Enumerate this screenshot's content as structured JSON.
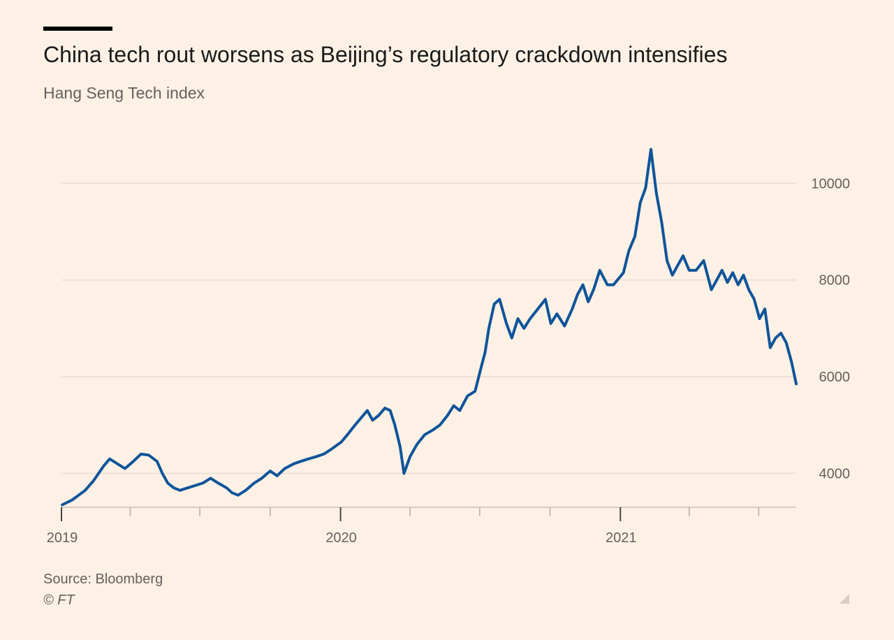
{
  "header": {
    "title": "China tech rout worsens as Beijing’s regulatory crackdown intensifies",
    "subtitle": "Hang Seng Tech index"
  },
  "footer": {
    "source": "Source: Bloomberg",
    "copyright": "© FT"
  },
  "colors": {
    "background": "#fdf1e6",
    "series": "#0f5499",
    "grid": "#e8ddd2",
    "axis_text": "#66605c"
  },
  "chart_data": {
    "type": "line",
    "xlim": [
      "2019-01-01",
      "2021-08-19"
    ],
    "ylim": [
      3300,
      10900
    ],
    "grid": true,
    "y_ticks": [
      {
        "value": 4000,
        "label": "4000"
      },
      {
        "value": 6000,
        "label": "6000"
      },
      {
        "value": 8000,
        "label": "8000"
      },
      {
        "value": 10000,
        "label": "10000"
      }
    ],
    "x_labels": [
      {
        "date": "2019-01-01",
        "label": "2019"
      },
      {
        "date": "2020-01-01",
        "label": "2020"
      },
      {
        "date": "2021-01-01",
        "label": "2021"
      }
    ],
    "x_minor_ticks": [
      "2019-04-01",
      "2019-07-01",
      "2019-10-01",
      "2020-04-01",
      "2020-07-01",
      "2020-10-01",
      "2021-04-01",
      "2021-07-01"
    ],
    "series": [
      {
        "x": [
          "2019-01-02",
          "2019-01-15",
          "2019-02-01",
          "2019-02-12",
          "2019-02-25",
          "2019-03-05",
          "2019-03-15",
          "2019-03-25",
          "2019-04-05",
          "2019-04-15",
          "2019-04-25",
          "2019-05-06",
          "2019-05-13",
          "2019-05-20",
          "2019-05-28",
          "2019-06-05",
          "2019-06-15",
          "2019-06-25",
          "2019-07-05",
          "2019-07-15",
          "2019-07-25",
          "2019-08-05",
          "2019-08-12",
          "2019-08-20",
          "2019-08-30",
          "2019-09-10",
          "2019-09-20",
          "2019-10-01",
          "2019-10-10",
          "2019-10-20",
          "2019-11-01",
          "2019-11-10",
          "2019-11-20",
          "2019-12-01",
          "2019-12-10",
          "2019-12-20",
          "2020-01-02",
          "2020-01-10",
          "2020-01-20",
          "2020-01-28",
          "2020-02-05",
          "2020-02-12",
          "2020-02-20",
          "2020-02-28",
          "2020-03-06",
          "2020-03-12",
          "2020-03-19",
          "2020-03-24",
          "2020-04-01",
          "2020-04-10",
          "2020-04-20",
          "2020-05-01",
          "2020-05-10",
          "2020-05-20",
          "2020-05-28",
          "2020-06-05",
          "2020-06-15",
          "2020-06-25",
          "2020-07-03",
          "2020-07-08",
          "2020-07-13",
          "2020-07-20",
          "2020-07-27",
          "2020-08-05",
          "2020-08-12",
          "2020-08-20",
          "2020-08-28",
          "2020-09-05",
          "2020-09-15",
          "2020-09-25",
          "2020-10-02",
          "2020-10-10",
          "2020-10-20",
          "2020-10-30",
          "2020-11-06",
          "2020-11-13",
          "2020-11-20",
          "2020-11-27",
          "2020-12-05",
          "2020-12-15",
          "2020-12-23",
          "2021-01-05",
          "2021-01-12",
          "2021-01-20",
          "2021-01-27",
          "2021-02-03",
          "2021-02-10",
          "2021-02-17",
          "2021-02-24",
          "2021-03-03",
          "2021-03-10",
          "2021-03-17",
          "2021-03-24",
          "2021-04-01",
          "2021-04-10",
          "2021-04-20",
          "2021-04-30",
          "2021-05-07",
          "2021-05-14",
          "2021-05-21",
          "2021-05-28",
          "2021-06-04",
          "2021-06-11",
          "2021-06-18",
          "2021-06-25",
          "2021-07-02",
          "2021-07-09",
          "2021-07-16",
          "2021-07-23",
          "2021-07-30",
          "2021-08-06",
          "2021-08-13",
          "2021-08-19"
        ],
        "y": [
          3350,
          3450,
          3650,
          3850,
          4150,
          4300,
          4200,
          4100,
          4250,
          4400,
          4380,
          4250,
          4000,
          3800,
          3700,
          3650,
          3700,
          3750,
          3800,
          3900,
          3800,
          3700,
          3600,
          3550,
          3650,
          3800,
          3900,
          4050,
          3950,
          4100,
          4200,
          4250,
          4300,
          4350,
          4400,
          4500,
          4650,
          4800,
          5000,
          5150,
          5300,
          5100,
          5200,
          5350,
          5300,
          5000,
          4550,
          4000,
          4350,
          4600,
          4800,
          4900,
          5000,
          5200,
          5400,
          5300,
          5600,
          5700,
          6200,
          6500,
          7000,
          7500,
          7600,
          7100,
          6800,
          7200,
          7000,
          7200,
          7400,
          7600,
          7100,
          7300,
          7050,
          7400,
          7700,
          7900,
          7550,
          7800,
          8200,
          7900,
          7900,
          8150,
          8600,
          8900,
          9600,
          9900,
          10700,
          9800,
          9200,
          8400,
          8100,
          8300,
          8500,
          8200,
          8200,
          8400,
          7800,
          8000,
          8200,
          7950,
          8150,
          7900,
          8100,
          7800,
          7600,
          7200,
          7400,
          6600,
          6800,
          6900,
          6700,
          6300,
          5850
        ]
      }
    ]
  }
}
